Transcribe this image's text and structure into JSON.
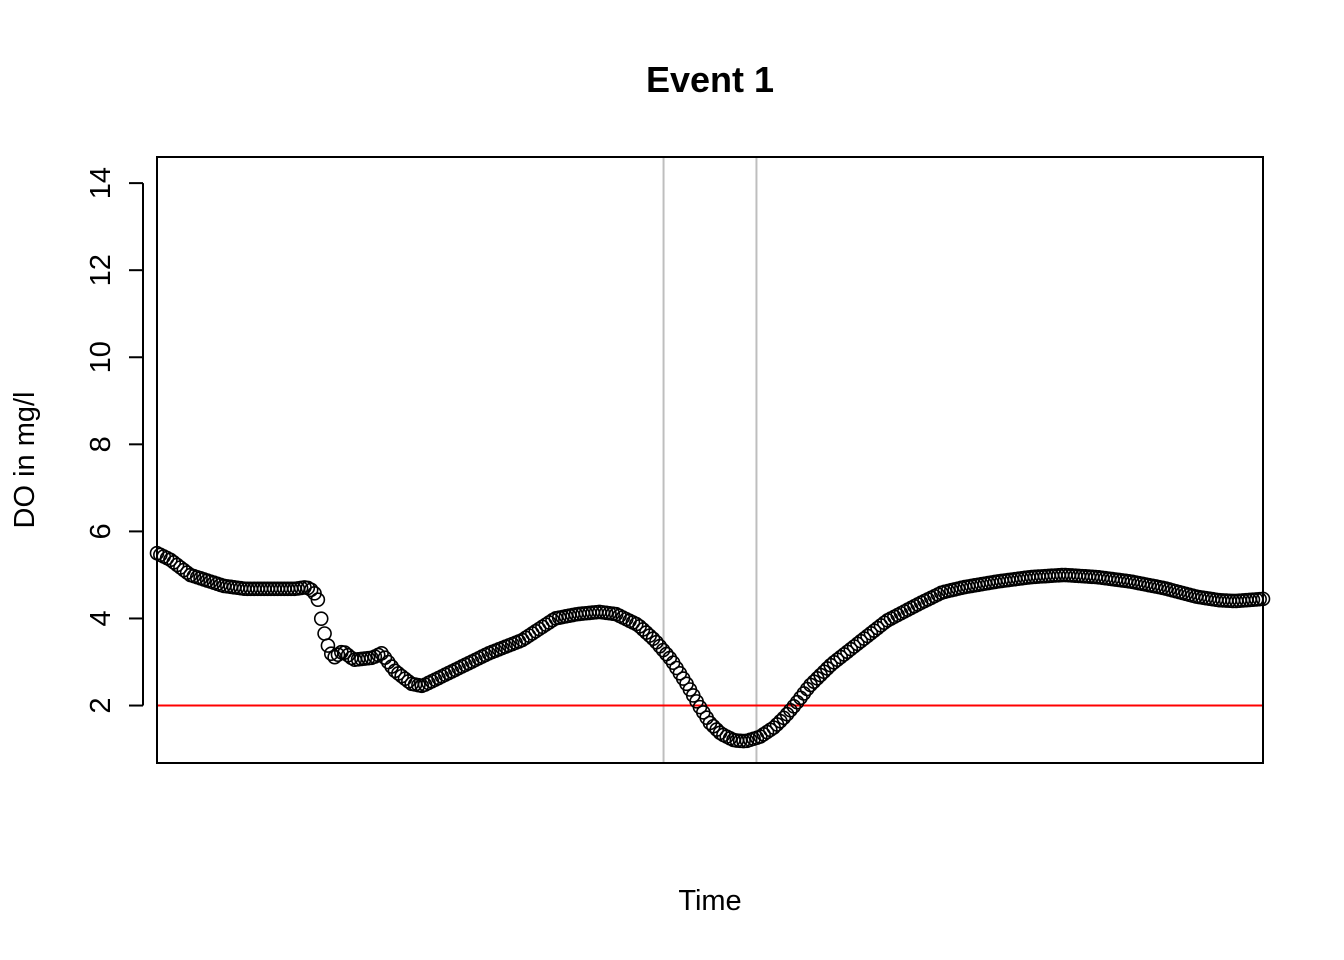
{
  "chart_data": {
    "type": "scatter",
    "title": "Event 1",
    "xlabel": "Time",
    "ylabel": "DO in mg/l",
    "ylim": [
      0.68,
      14.6
    ],
    "yticks": [
      "2",
      "4",
      "6",
      "8",
      "10",
      "12",
      "14"
    ],
    "xlim": [
      0,
      1
    ],
    "grid": false,
    "x_ticks_shown": false,
    "series": [
      {
        "marker": "open-circle",
        "color": "#000000",
        "keypoints": [
          [
            0.0,
            5.5
          ],
          [
            0.012,
            5.35
          ],
          [
            0.03,
            5.0
          ],
          [
            0.06,
            4.75
          ],
          [
            0.08,
            4.68
          ],
          [
            0.125,
            4.68
          ],
          [
            0.135,
            4.72
          ],
          [
            0.14,
            4.65
          ],
          [
            0.145,
            4.5
          ],
          [
            0.148,
            4.05
          ],
          [
            0.152,
            3.6
          ],
          [
            0.156,
            3.25
          ],
          [
            0.16,
            3.1
          ],
          [
            0.168,
            3.25
          ],
          [
            0.178,
            3.05
          ],
          [
            0.195,
            3.1
          ],
          [
            0.203,
            3.2
          ],
          [
            0.215,
            2.8
          ],
          [
            0.23,
            2.5
          ],
          [
            0.24,
            2.45
          ],
          [
            0.26,
            2.7
          ],
          [
            0.3,
            3.2
          ],
          [
            0.33,
            3.5
          ],
          [
            0.345,
            3.75
          ],
          [
            0.36,
            4.0
          ],
          [
            0.38,
            4.1
          ],
          [
            0.4,
            4.15
          ],
          [
            0.415,
            4.1
          ],
          [
            0.435,
            3.85
          ],
          [
            0.45,
            3.5
          ],
          [
            0.465,
            3.05
          ],
          [
            0.48,
            2.45
          ],
          [
            0.49,
            2.0
          ],
          [
            0.5,
            1.6
          ],
          [
            0.51,
            1.35
          ],
          [
            0.522,
            1.2
          ],
          [
            0.532,
            1.18
          ],
          [
            0.545,
            1.28
          ],
          [
            0.558,
            1.5
          ],
          [
            0.568,
            1.75
          ],
          [
            0.578,
            2.05
          ],
          [
            0.59,
            2.45
          ],
          [
            0.61,
            2.95
          ],
          [
            0.635,
            3.45
          ],
          [
            0.66,
            3.95
          ],
          [
            0.69,
            4.35
          ],
          [
            0.71,
            4.6
          ],
          [
            0.73,
            4.72
          ],
          [
            0.76,
            4.85
          ],
          [
            0.79,
            4.95
          ],
          [
            0.82,
            5.0
          ],
          [
            0.85,
            4.95
          ],
          [
            0.88,
            4.85
          ],
          [
            0.91,
            4.7
          ],
          [
            0.94,
            4.5
          ],
          [
            0.96,
            4.42
          ],
          [
            0.975,
            4.4
          ],
          [
            1.0,
            4.45
          ]
        ]
      }
    ],
    "hlines": [
      {
        "y": 2,
        "color": "#ff0000"
      }
    ],
    "vlines": [
      {
        "x": 0.458,
        "color": "#bebebe"
      },
      {
        "x": 0.542,
        "color": "#bebebe"
      }
    ]
  }
}
